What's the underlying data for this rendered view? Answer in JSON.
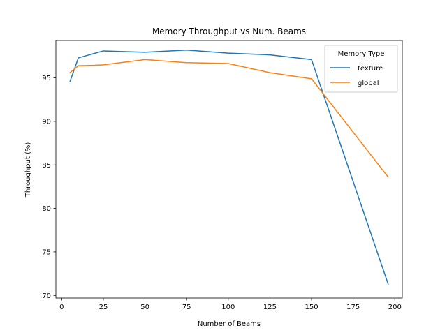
{
  "chart_data": {
    "type": "line",
    "title": "Memory Throughput vs Num. Beams",
    "xlabel": "Number of Beams",
    "ylabel": "Throughput (%)",
    "xlim": [
      -3.5,
      204.5
    ],
    "ylim": [
      69.7,
      99.3
    ],
    "xticks": [
      0,
      25,
      50,
      75,
      100,
      125,
      150,
      175,
      200
    ],
    "yticks": [
      70,
      75,
      80,
      85,
      90,
      95
    ],
    "grid": false,
    "legend": {
      "title": "Memory Type",
      "position": "top-right"
    },
    "series": [
      {
        "name": "texture",
        "color": "#1f77b4",
        "x": [
          5,
          10,
          25,
          50,
          75,
          100,
          125,
          150,
          196
        ],
        "y": [
          94.6,
          97.3,
          98.1,
          97.95,
          98.2,
          97.85,
          97.65,
          97.1,
          71.3
        ]
      },
      {
        "name": "global",
        "color": "#ff7f0e",
        "x": [
          5,
          10,
          20,
          25,
          50,
          75,
          100,
          125,
          150,
          196
        ],
        "y": [
          95.6,
          96.4,
          96.45,
          96.5,
          97.1,
          96.75,
          96.65,
          95.6,
          94.9,
          83.6
        ]
      }
    ]
  }
}
